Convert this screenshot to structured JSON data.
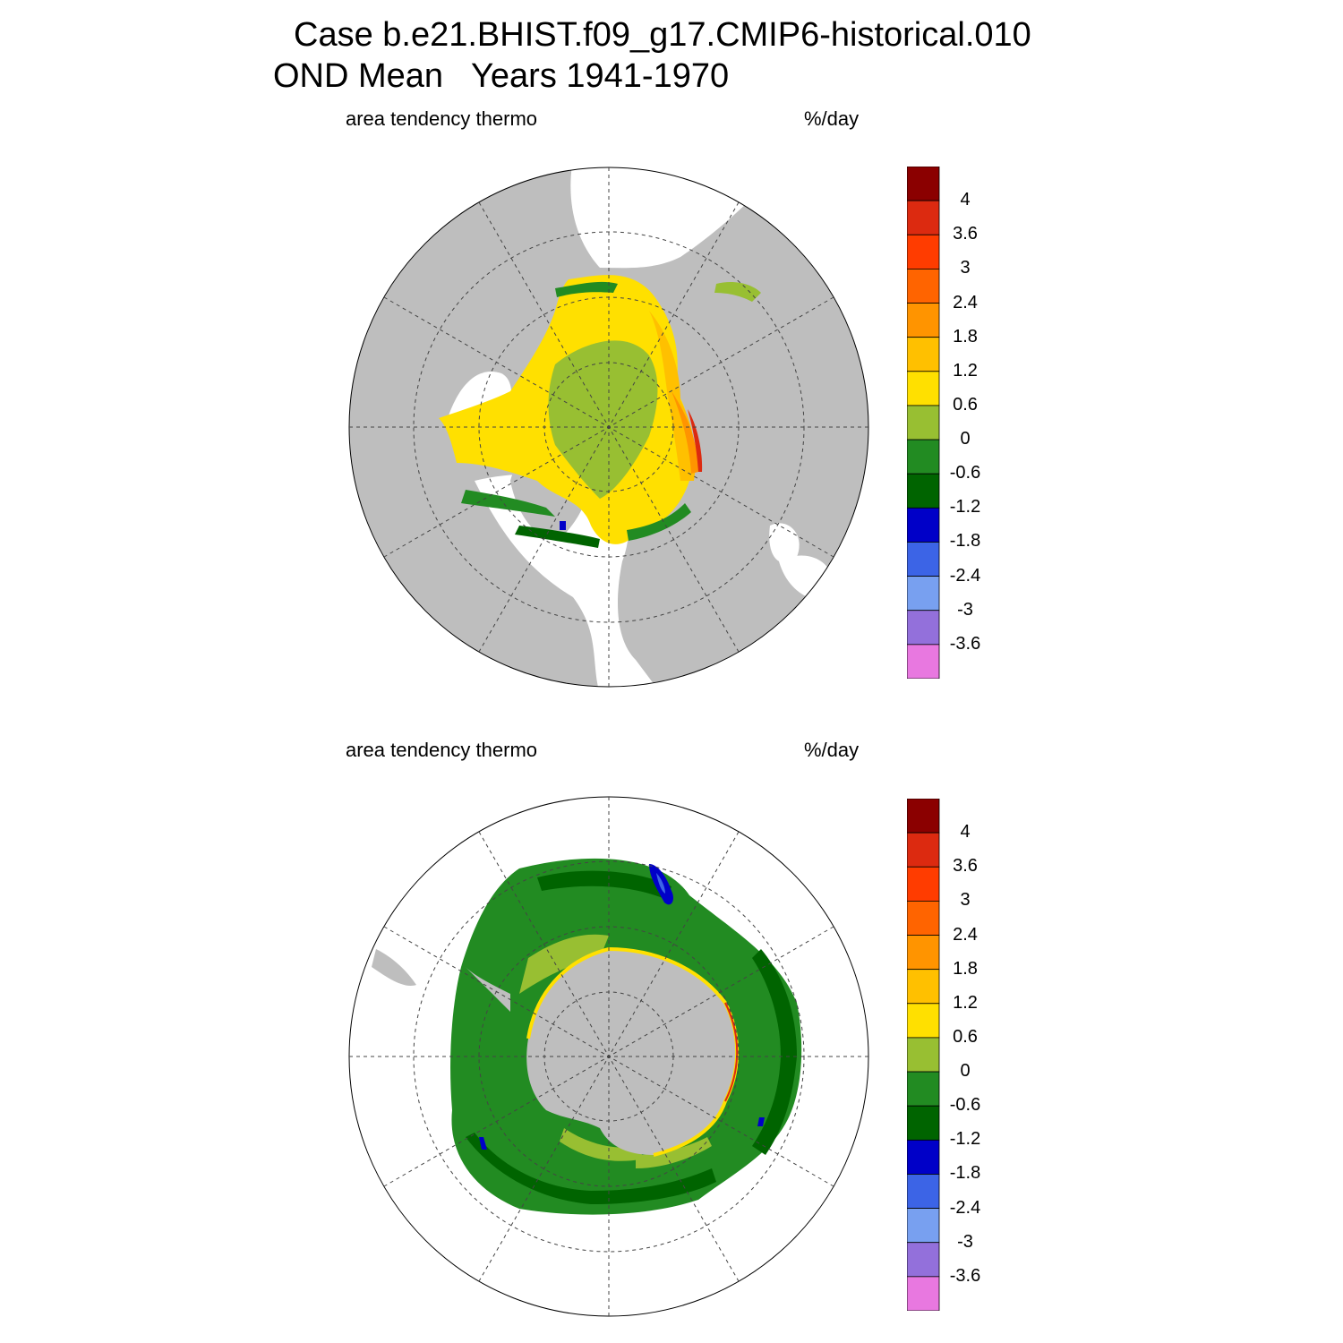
{
  "title": {
    "line1": "Case b.e21.BHIST.f09_g17.CMIP6-historical.010",
    "line2": "OND Mean   Years 1941-1970"
  },
  "panels": [
    {
      "id": "north",
      "left_label": "area tendency thermo",
      "right_label": "%/day"
    },
    {
      "id": "south",
      "left_label": "area tendency thermo",
      "right_label": "%/day"
    }
  ],
  "colorbar": {
    "labels": [
      "4",
      "3.6",
      "3",
      "2.4",
      "1.8",
      "1.2",
      "0.6",
      "0",
      "-0.6",
      "-1.2",
      "-1.8",
      "-2.4",
      "-3",
      "-3.6"
    ],
    "colors": [
      "#8b0000",
      "#dc2a10",
      "#ff3c00",
      "#ff6400",
      "#ff9400",
      "#ffc000",
      "#ffe000",
      "#98bf32",
      "#228b22",
      "#006400",
      "#0000c8",
      "#3c64e6",
      "#78a0f0",
      "#9370db",
      "#e878e0"
    ]
  },
  "styles": {
    "land": "#bebebe",
    "ocean": "#ffffff"
  }
}
